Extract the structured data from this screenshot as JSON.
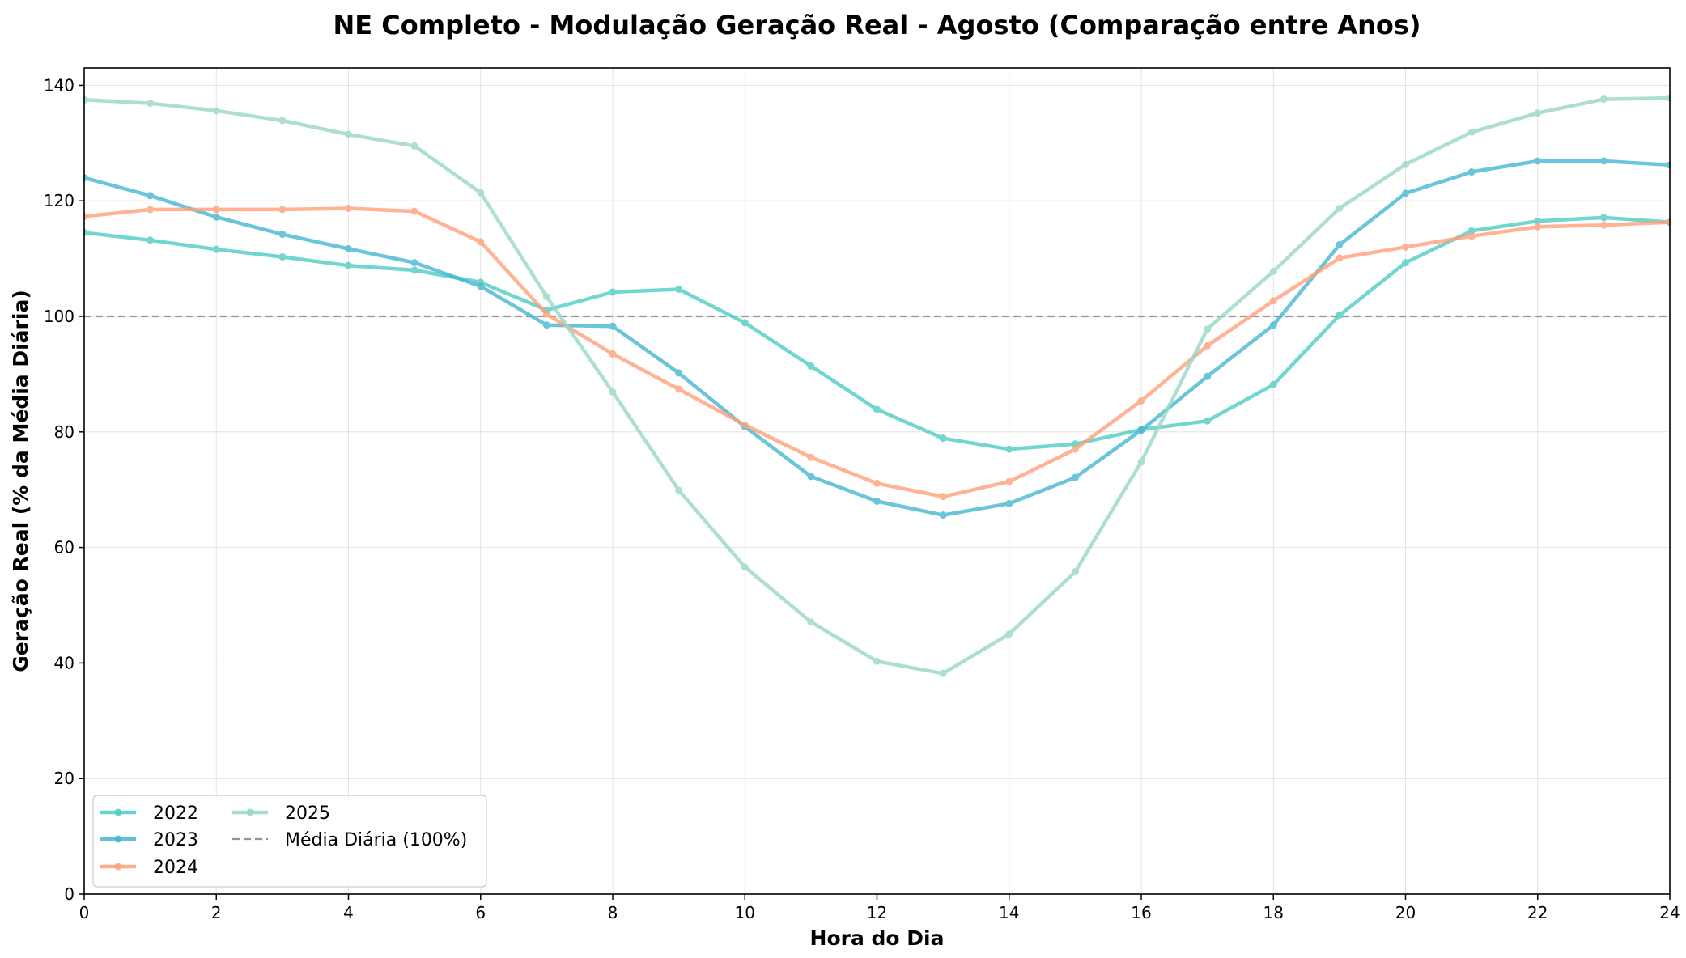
{
  "chart_data": {
    "type": "line",
    "title": "NE Completo - Modulação Geração Real - Agosto (Comparação entre Anos)",
    "xlabel": "Hora do Dia",
    "ylabel": "Geração Real (% da Média Diária)",
    "xlim": [
      0,
      24
    ],
    "ylim": [
      0,
      143
    ],
    "xticks": [
      0,
      2,
      4,
      6,
      8,
      10,
      12,
      14,
      16,
      18,
      20,
      22,
      24
    ],
    "yticks": [
      0,
      20,
      40,
      60,
      80,
      100,
      120,
      140
    ],
    "grid": true,
    "legend_position": "lower-left",
    "x": [
      0,
      1,
      2,
      3,
      4,
      5,
      6,
      7,
      8,
      9,
      10,
      11,
      12,
      13,
      14,
      15,
      16,
      17,
      18,
      19,
      20,
      21,
      22,
      23,
      24
    ],
    "series": [
      {
        "name": "2022",
        "color": "#4ecdc4",
        "values": [
          114.5,
          113.2,
          111.6,
          110.3,
          108.8,
          108.0,
          105.9,
          101.1,
          104.2,
          104.7,
          98.9,
          91.4,
          83.9,
          78.9,
          77.0,
          77.9,
          80.4,
          81.9,
          88.2,
          100.2,
          109.3,
          114.8,
          116.5,
          117.1,
          116.3
        ]
      },
      {
        "name": "2023",
        "color": "#45b7d1",
        "values": [
          124.0,
          120.9,
          117.2,
          114.2,
          111.7,
          109.3,
          105.2,
          98.5,
          98.3,
          90.2,
          80.9,
          72.3,
          68.0,
          65.6,
          67.6,
          72.1,
          80.3,
          89.6,
          98.5,
          112.4,
          121.3,
          125.0,
          126.9,
          126.9,
          126.2
        ]
      },
      {
        "name": "2024",
        "color": "#ffa07a",
        "values": [
          117.3,
          118.5,
          118.5,
          118.5,
          118.7,
          118.2,
          112.9,
          100.4,
          93.5,
          87.4,
          81.2,
          75.6,
          71.1,
          68.8,
          71.4,
          77.0,
          85.4,
          94.9,
          102.7,
          110.1,
          112.0,
          113.9,
          115.5,
          115.8,
          116.3
        ]
      },
      {
        "name": "2025",
        "color": "#98d8c8",
        "values": [
          137.5,
          136.9,
          135.6,
          133.9,
          131.5,
          129.5,
          121.4,
          103.4,
          86.9,
          69.9,
          56.6,
          47.1,
          40.3,
          38.2,
          45.0,
          55.8,
          74.8,
          97.8,
          107.8,
          118.7,
          126.3,
          131.9,
          135.2,
          137.6,
          137.8
        ]
      }
    ],
    "reference_line": {
      "name": "Média Diária (100%)",
      "value": 100,
      "color": "#808080",
      "style": "dashed"
    }
  }
}
